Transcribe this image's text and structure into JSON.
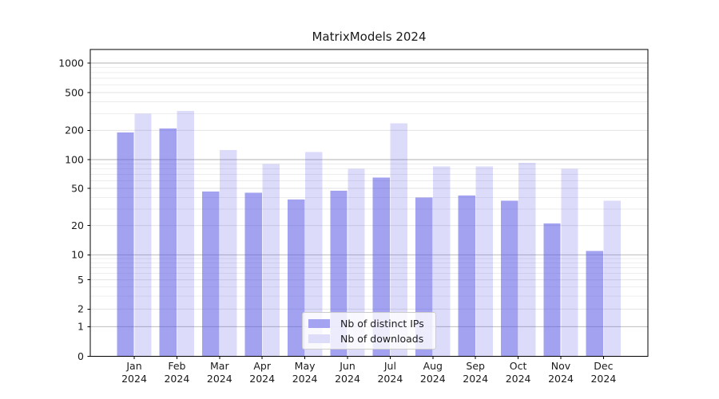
{
  "title": "MatrixModels 2024",
  "chart_data": {
    "type": "bar",
    "title": "MatrixModels 2024",
    "categories": [
      "Jan 2024",
      "Feb 2024",
      "Mar 2024",
      "Apr 2024",
      "May 2024",
      "Jun 2024",
      "Jul 2024",
      "Aug 2024",
      "Sep 2024",
      "Oct 2024",
      "Nov 2024",
      "Dec 2024"
    ],
    "series": [
      {
        "name": "Nb of distinct IPs",
        "color_hex": "#a3a3f1",
        "fill_rgba": "rgba(90,90,230,0.56)",
        "values": [
          190,
          210,
          46,
          45,
          38,
          47,
          65,
          40,
          42,
          37,
          21,
          11
        ]
      },
      {
        "name": "Nb of downloads",
        "color_hex": "#ddddfa",
        "fill_rgba": "rgba(90,90,230,0.21)",
        "values": [
          300,
          320,
          125,
          90,
          120,
          80,
          238,
          85,
          85,
          93,
          80,
          37
        ]
      }
    ],
    "y_scale": "symlog",
    "y_ticks": [
      0,
      1,
      2,
      5,
      10,
      20,
      50,
      100,
      200,
      500,
      1000
    ],
    "ylim": [
      0,
      1390
    ],
    "grid": true,
    "legend_position": "lower center",
    "xlabel": "",
    "ylabel": "",
    "colors": {
      "grid_major": "#b2b2b2",
      "grid_minor_labeled": "#e0e0e0",
      "grid_minor": "#ebebeb",
      "spine": "#000000",
      "text": "#1a1a1a"
    }
  }
}
